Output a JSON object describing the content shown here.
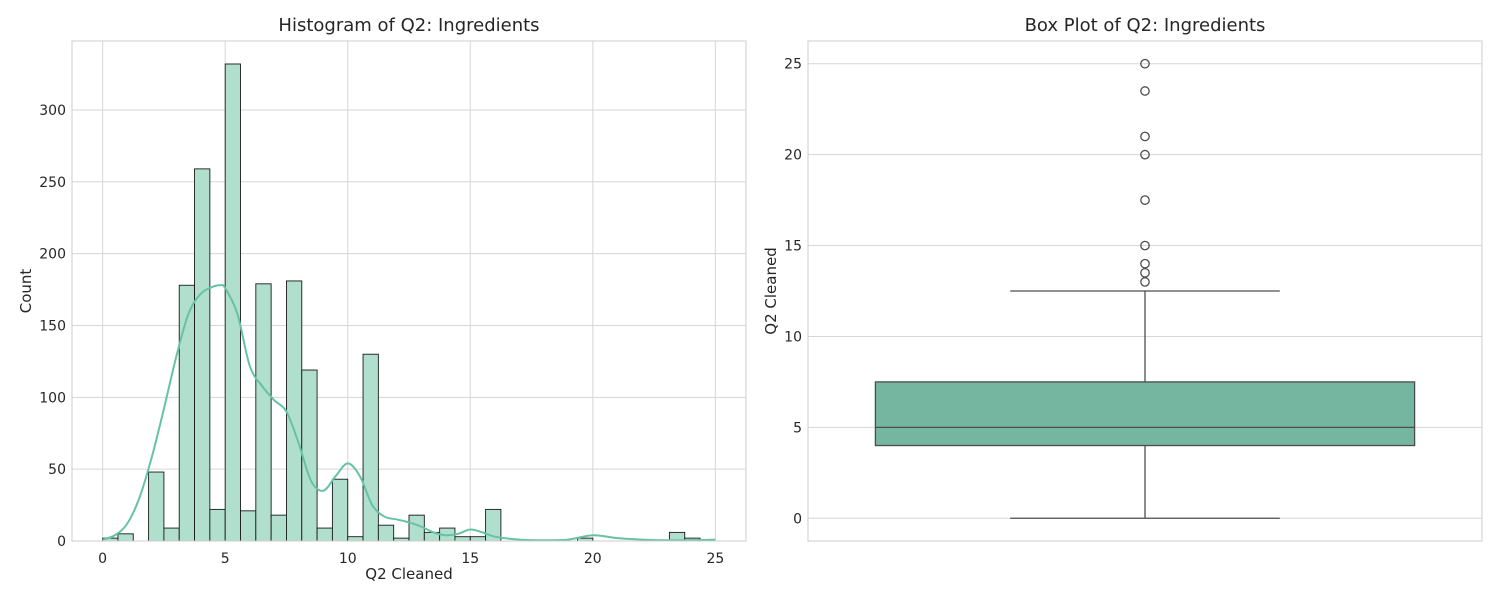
{
  "chart_data": [
    {
      "type": "bar",
      "subtype": "histogram",
      "title": "Histogram of Q2: Ingredients",
      "xlabel": "Q2 Cleaned",
      "ylabel": "Count",
      "xlim": [
        -1.25,
        26.25
      ],
      "ylim": [
        0,
        348
      ],
      "xticks": [
        0,
        5,
        10,
        15,
        20,
        25
      ],
      "yticks": [
        0,
        50,
        100,
        150,
        200,
        250,
        300
      ],
      "grid": true,
      "bin_width": 0.625,
      "bin_start": 0,
      "counts": [
        2,
        5,
        0,
        48,
        9,
        178,
        259,
        22,
        332,
        21,
        179,
        18,
        181,
        119,
        9,
        43,
        3,
        130,
        11,
        2,
        18,
        6,
        9,
        3,
        3,
        22,
        0,
        0,
        0,
        0,
        0,
        2,
        0,
        0,
        0,
        0,
        0,
        6,
        2,
        0
      ],
      "kde": {
        "x": [
          0,
          0.5,
          1,
          1.5,
          2,
          2.5,
          3,
          3.5,
          4,
          4.5,
          4.8,
          5,
          5.5,
          6,
          6.5,
          7,
          7.5,
          8,
          8.5,
          9,
          9.5,
          10,
          10.5,
          11,
          11.5,
          12,
          12.5,
          13,
          13.5,
          14,
          14.5,
          15,
          15.5,
          16,
          17,
          18,
          19,
          20,
          21,
          22,
          23,
          24,
          25
        ],
        "y": [
          1,
          4,
          12,
          30,
          58,
          92,
          128,
          158,
          172,
          177,
          178,
          176,
          158,
          122,
          108,
          98,
          90,
          68,
          42,
          35,
          45,
          54,
          45,
          25,
          17,
          15,
          13,
          10,
          6,
          4,
          5,
          8,
          6,
          3,
          1,
          0.5,
          1,
          4,
          2,
          1,
          0.5,
          0.5,
          1
        ]
      }
    },
    {
      "type": "box",
      "title": "Box Plot of Q2: Ingredients",
      "xlabel": "",
      "ylabel": "Q2 Cleaned",
      "ylim": [
        -1.25,
        26.25
      ],
      "yticks": [
        0,
        5,
        10,
        15,
        20,
        25
      ],
      "grid": true,
      "stats": {
        "whisker_low": 0,
        "q1": 4,
        "median": 5,
        "q3": 7.5,
        "whisker_high": 12.5
      },
      "outliers": [
        13,
        13.5,
        14,
        15,
        17.5,
        20,
        21,
        23.5,
        25
      ]
    }
  ],
  "colors": {
    "hist_fill": "#b1dfcd",
    "kde_line": "#66c2a5",
    "box_fill": "#75b6a0",
    "edge": "#1a1a1a",
    "box_line": "#4d4d4d",
    "grid": "#d6d6d6",
    "spine": "#cccccc"
  }
}
